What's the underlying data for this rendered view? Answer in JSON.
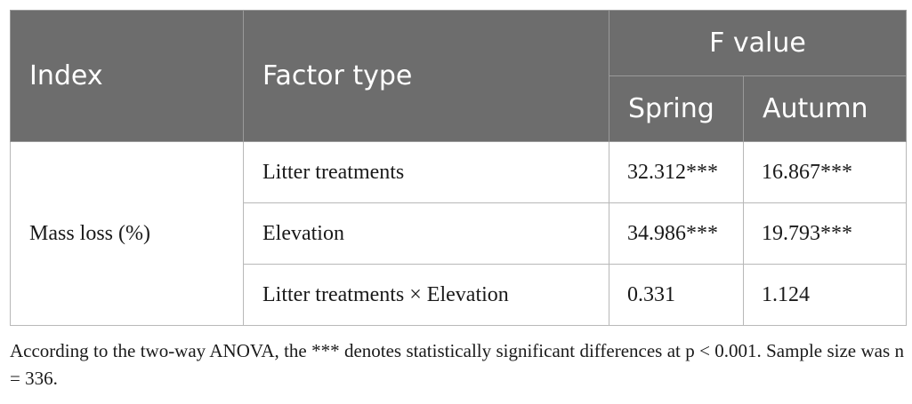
{
  "table": {
    "header": {
      "index": "Index",
      "factor_type": "Factor type",
      "f_value": "F value",
      "spring": "Spring",
      "autumn": "Autumn"
    },
    "index_label": "Mass loss (%)",
    "rows": [
      {
        "factor": "Litter treatments",
        "spring": "32.312***",
        "autumn": "16.867***"
      },
      {
        "factor": "Elevation",
        "spring": "34.986***",
        "autumn": "19.793***"
      },
      {
        "factor": "Litter treatments × Elevation",
        "spring": "0.331",
        "autumn": "1.124"
      }
    ]
  },
  "caption": "According to the two-way ANOVA, the *** denotes statistically significant differences at p < 0.001. Sample size was n = 336."
}
